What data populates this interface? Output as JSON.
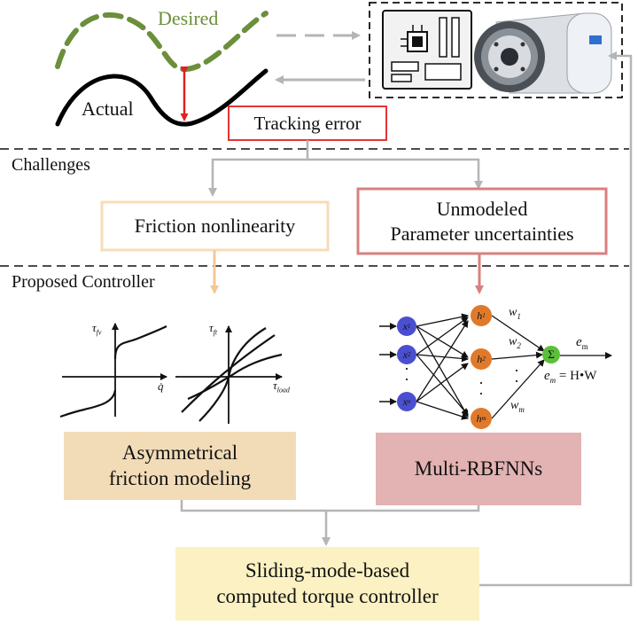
{
  "trajectory": {
    "desired_label": "Desired",
    "actual_label": "Actual",
    "tracking_error_label": "Tracking error",
    "desired_color": "#6b8f3a",
    "actual_color": "#000000",
    "error_arrow_color": "#e02020"
  },
  "hardware": {
    "board_icon": "circuit-board-icon",
    "actuator_icon": "joint-actuator-icon"
  },
  "sections": {
    "challenges": "Challenges",
    "proposed": "Proposed Controller"
  },
  "challenges": {
    "friction": "Friction nonlinearity",
    "unmodeled_line1": "Unmodeled",
    "unmodeled_line2": "Parameter uncertainties",
    "friction_color": "#f7dcb8",
    "unmodeled_color": "#d98080"
  },
  "friction_plots": {
    "left_y": "τ",
    "left_y_sub": "fv",
    "left_x": "q̇",
    "right_y": "τ",
    "right_y_sub": "ft",
    "right_x": "τ",
    "right_x_sub": "load"
  },
  "rbfnn": {
    "inputs": [
      "x",
      "x",
      "x"
    ],
    "input_subs": [
      "1",
      "2",
      "n"
    ],
    "hidden": [
      "h",
      "h",
      "h"
    ],
    "hidden_subs": [
      "1",
      "2",
      "m"
    ],
    "weights": [
      "w",
      "w",
      "w"
    ],
    "weight_subs": [
      "1",
      "2",
      "m"
    ],
    "sum_symbol": "Σ",
    "output": "e",
    "output_sub": "m",
    "formula_lhs": "e",
    "formula_lhs_sub": "m",
    "formula_rhs": " = H•W",
    "dots": "·",
    "input_color": "#4a4fd0",
    "hidden_color": "#e07a2a",
    "sum_color": "#5cbf3a"
  },
  "blocks": {
    "asym_line1": "Asymmetrical",
    "asym_line2": "friction modeling",
    "rbf": "Multi-RBFNNs",
    "smc_line1": "Sliding-mode-based",
    "smc_line2": "computed torque controller",
    "asym_color": "#f2dcb8",
    "rbf_color": "#e3b2b2",
    "smc_color": "#fbf1c2"
  }
}
